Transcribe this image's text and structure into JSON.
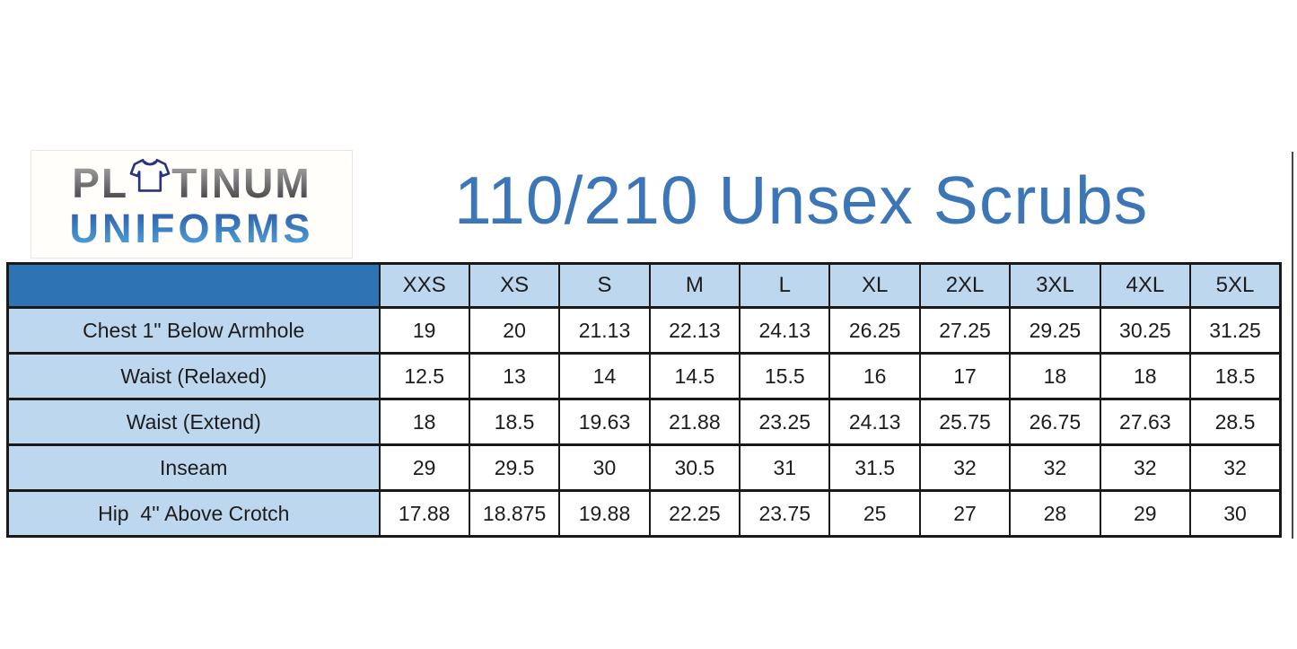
{
  "title": "110/210 Unsex Scrubs",
  "logo": {
    "word1_prefix": "PL",
    "word1_suffix": "TINUM",
    "word2": "UNIFORMS",
    "shirt_icon": "t-shirt-icon"
  },
  "colors": {
    "header_fill": "#2E74B5",
    "row_label_fill": "#BDD7EE",
    "title_blue": "#3D76B6",
    "border": "#191919",
    "logo_gray_top": "#A9A9A9",
    "logo_gray_bottom": "#3E3E42",
    "logo_blue_top": "#2B59A6",
    "logo_blue_bottom": "#4FA5DC",
    "shirt_outline": "#27337f"
  },
  "chart_data": {
    "type": "table",
    "title": "110/210 Unsex Scrubs",
    "columns": [
      "XXS",
      "XS",
      "S",
      "M",
      "L",
      "XL",
      "2XL",
      "3XL",
      "4XL",
      "5XL"
    ],
    "rows": [
      {
        "label": "Chest 1\" Below Armhole",
        "values": [
          "19",
          "20",
          "21.13",
          "22.13",
          "24.13",
          "26.25",
          "27.25",
          "29.25",
          "30.25",
          "31.25"
        ]
      },
      {
        "label": "Waist (Relaxed)",
        "values": [
          "12.5",
          "13",
          "14",
          "14.5",
          "15.5",
          "16",
          "17",
          "18",
          "18",
          "18.5"
        ]
      },
      {
        "label": "Waist (Extend)",
        "values": [
          "18",
          "18.5",
          "19.63",
          "21.88",
          "23.25",
          "24.13",
          "25.75",
          "26.75",
          "27.63",
          "28.5"
        ]
      },
      {
        "label": "Inseam",
        "values": [
          "29",
          "29.5",
          "30",
          "30.5",
          "31",
          "31.5",
          "32",
          "32",
          "32",
          "32"
        ]
      },
      {
        "label": "Hip  4'' Above Crotch",
        "values": [
          "17.88",
          "18.875",
          "19.88",
          "22.25",
          "23.75",
          "25",
          "27",
          "28",
          "29",
          "30"
        ]
      }
    ]
  }
}
